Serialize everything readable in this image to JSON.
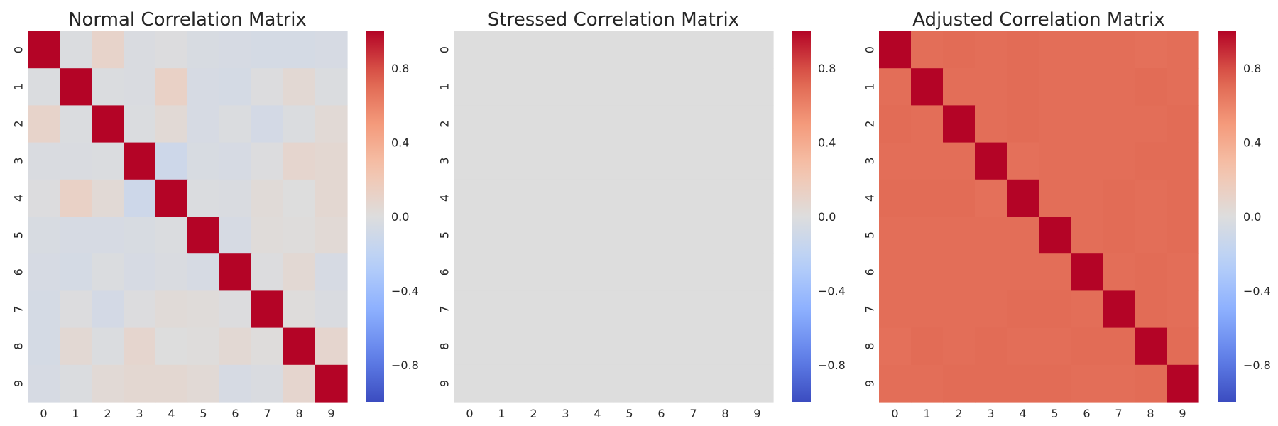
{
  "chart_data": [
    {
      "type": "heatmap",
      "title": "Normal Correlation Matrix",
      "x_ticks": [
        "0",
        "1",
        "2",
        "3",
        "4",
        "5",
        "6",
        "7",
        "8",
        "9"
      ],
      "y_ticks": [
        "0",
        "1",
        "2",
        "3",
        "4",
        "5",
        "6",
        "7",
        "8",
        "9"
      ],
      "colormap": "coolwarm",
      "vmin": -1,
      "vmax": 1,
      "colorbar_ticks": [
        "0.8",
        "0.4",
        "0.0",
        "−0.4",
        "−0.8"
      ],
      "colorbar_tick_values": [
        0.8,
        0.4,
        0.0,
        -0.4,
        -0.8
      ],
      "values": [
        [
          1.0,
          -0.02,
          0.1,
          -0.03,
          -0.01,
          -0.04,
          -0.05,
          -0.06,
          -0.06,
          -0.05
        ],
        [
          -0.02,
          1.0,
          -0.02,
          -0.03,
          0.12,
          -0.05,
          -0.06,
          -0.01,
          0.05,
          -0.02
        ],
        [
          0.1,
          -0.02,
          1.0,
          -0.02,
          0.04,
          -0.05,
          -0.02,
          -0.07,
          -0.02,
          0.04
        ],
        [
          -0.03,
          -0.03,
          -0.02,
          1.0,
          -0.11,
          -0.04,
          -0.05,
          -0.01,
          0.08,
          0.06
        ],
        [
          -0.01,
          0.12,
          0.04,
          -0.11,
          1.0,
          -0.02,
          -0.03,
          0.03,
          0.0,
          0.06
        ],
        [
          -0.04,
          -0.05,
          -0.05,
          -0.04,
          -0.02,
          1.0,
          -0.05,
          0.02,
          0.01,
          0.04
        ],
        [
          -0.05,
          -0.06,
          -0.02,
          -0.05,
          -0.03,
          -0.05,
          1.0,
          -0.01,
          0.05,
          -0.05
        ],
        [
          -0.06,
          -0.01,
          -0.07,
          -0.01,
          0.03,
          0.02,
          -0.01,
          1.0,
          0.01,
          -0.03
        ],
        [
          -0.06,
          0.05,
          -0.02,
          0.08,
          0.0,
          0.01,
          0.05,
          0.01,
          1.0,
          0.08
        ],
        [
          -0.05,
          -0.02,
          0.04,
          0.06,
          0.06,
          0.04,
          -0.05,
          -0.03,
          0.08,
          1.0
        ]
      ]
    },
    {
      "type": "heatmap",
      "title": "Stressed Correlation Matrix",
      "x_ticks": [
        "0",
        "1",
        "2",
        "3",
        "4",
        "5",
        "6",
        "7",
        "8",
        "9"
      ],
      "y_ticks": [
        "0",
        "1",
        "2",
        "3",
        "4",
        "5",
        "6",
        "7",
        "8",
        "9"
      ],
      "colormap": "coolwarm",
      "vmin": -1,
      "vmax": 1,
      "colorbar_ticks": [
        "0.8",
        "0.4",
        "0.0",
        "−0.4",
        "−0.8"
      ],
      "colorbar_tick_values": [
        0.8,
        0.4,
        0.0,
        -0.4,
        -0.8
      ],
      "values": [
        [
          0,
          0,
          0,
          0,
          0,
          0,
          0,
          0,
          0,
          0
        ],
        [
          0,
          0,
          0,
          0,
          0,
          0,
          0,
          0,
          0,
          0
        ],
        [
          0,
          0,
          0,
          0,
          0,
          0,
          0,
          0,
          0,
          0
        ],
        [
          0,
          0,
          0,
          0,
          0,
          0,
          0,
          0,
          0,
          0
        ],
        [
          0,
          0,
          0,
          0,
          0,
          0,
          0,
          0,
          0,
          0
        ],
        [
          0,
          0,
          0,
          0,
          0,
          0,
          0,
          0,
          0,
          0
        ],
        [
          0,
          0,
          0,
          0,
          0,
          0,
          0,
          0,
          0,
          0
        ],
        [
          0,
          0,
          0,
          0,
          0,
          0,
          0,
          0,
          0,
          0
        ],
        [
          0,
          0,
          0,
          0,
          0,
          0,
          0,
          0,
          0,
          0
        ],
        [
          0,
          0,
          0,
          0,
          0,
          0,
          0,
          0,
          0,
          0
        ]
      ]
    },
    {
      "type": "heatmap",
      "title": "Adjusted Correlation Matrix",
      "x_ticks": [
        "0",
        "1",
        "2",
        "3",
        "4",
        "5",
        "6",
        "7",
        "8",
        "9"
      ],
      "y_ticks": [
        "0",
        "1",
        "2",
        "3",
        "4",
        "5",
        "6",
        "7",
        "8",
        "9"
      ],
      "colormap": "coolwarm",
      "vmin": -1,
      "vmax": 1,
      "colorbar_ticks": [
        "0.8",
        "0.4",
        "0.0",
        "−0.4",
        "−0.8"
      ],
      "colorbar_tick_values": [
        0.8,
        0.4,
        0.0,
        -0.4,
        -0.8
      ],
      "values": [
        [
          1.0,
          0.69,
          0.7,
          0.69,
          0.7,
          0.69,
          0.69,
          0.69,
          0.68,
          0.69
        ],
        [
          0.69,
          1.0,
          0.69,
          0.69,
          0.7,
          0.69,
          0.69,
          0.69,
          0.7,
          0.69
        ],
        [
          0.7,
          0.69,
          1.0,
          0.69,
          0.7,
          0.69,
          0.69,
          0.69,
          0.69,
          0.7
        ],
        [
          0.69,
          0.69,
          0.69,
          1.0,
          0.68,
          0.69,
          0.69,
          0.69,
          0.7,
          0.7
        ],
        [
          0.7,
          0.7,
          0.7,
          0.68,
          1.0,
          0.69,
          0.69,
          0.7,
          0.69,
          0.7
        ],
        [
          0.69,
          0.69,
          0.69,
          0.69,
          0.69,
          1.0,
          0.69,
          0.7,
          0.69,
          0.7
        ],
        [
          0.69,
          0.69,
          0.69,
          0.69,
          0.69,
          0.69,
          1.0,
          0.69,
          0.7,
          0.69
        ],
        [
          0.69,
          0.69,
          0.69,
          0.69,
          0.7,
          0.7,
          0.69,
          1.0,
          0.7,
          0.69
        ],
        [
          0.68,
          0.7,
          0.69,
          0.7,
          0.69,
          0.69,
          0.7,
          0.7,
          1.0,
          0.7
        ],
        [
          0.69,
          0.69,
          0.7,
          0.7,
          0.7,
          0.7,
          0.69,
          0.69,
          0.7,
          1.0
        ]
      ]
    }
  ]
}
